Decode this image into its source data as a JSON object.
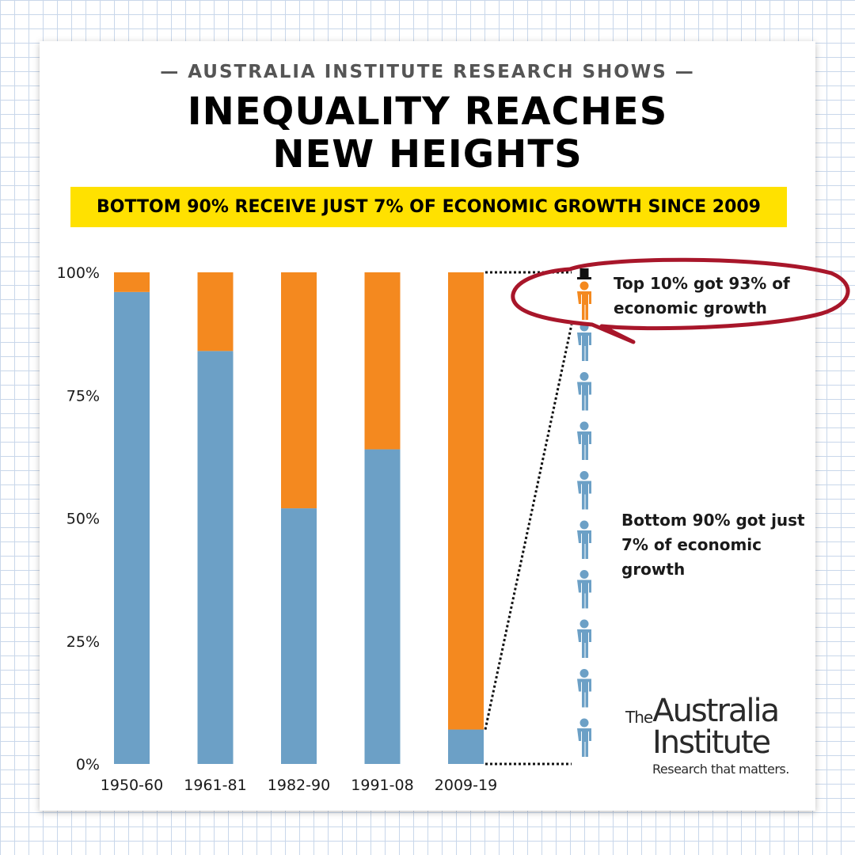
{
  "header": {
    "kicker": "— AUSTRALIA INSTITUTE RESEARCH SHOWS —",
    "title_line1": "INEQUALITY REACHES",
    "title_line2": "NEW HEIGHTS",
    "banner": "BOTTOM 90% RECEIVE JUST 7% OF ECONOMIC GROWTH SINCE 2009"
  },
  "colors": {
    "bottom_90": "#6ca0c6",
    "top_10": "#f4891f",
    "banner": "#ffe100",
    "callout_ring": "#a8162a"
  },
  "chart_data": {
    "type": "bar",
    "stacked": true,
    "categories": [
      "1950-60",
      "1961-81",
      "1982-90",
      "1991-08",
      "2009-19"
    ],
    "series": [
      {
        "values": [
          96,
          84,
          52,
          64,
          7
        ]
      },
      {
        "values": [
          4,
          16,
          48,
          36,
          93
        ]
      }
    ],
    "ylim": [
      0,
      100
    ],
    "ytick_labels": [
      "0%",
      "25%",
      "50%",
      "75%",
      "100%"
    ],
    "ytick_values": [
      0,
      25,
      50,
      75,
      100
    ],
    "grid": false
  },
  "callouts": {
    "top": "Top 10% got 93% of economic growth",
    "bottom": "Bottom 90% got just 7% of economic growth"
  },
  "people": {
    "top_count": 1,
    "bottom_count": 9
  },
  "icons": {
    "top_person": "person-with-top-hat-icon",
    "bottom_person": "person-icon"
  },
  "logo": {
    "the": "The",
    "line1": "Australia",
    "line2": "Institute",
    "tagline": "Research that matters."
  }
}
